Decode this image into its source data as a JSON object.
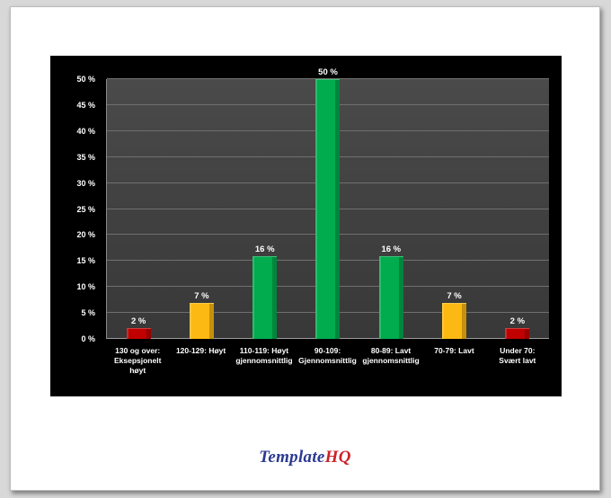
{
  "chart_data": {
    "type": "bar",
    "categories": [
      "130 og over: Eksepsjonelt høyt",
      "120-129: Høyt",
      "110-119: Høyt gjennomsnittlig",
      "90-109: Gjennomsnittlig",
      "80-89: Lavt gjennomsnittlig",
      "70-79: Lavt",
      "Under 70: Svært lavt"
    ],
    "values": [
      2,
      7,
      16,
      50,
      16,
      7,
      2
    ],
    "data_labels": [
      "2 %",
      "7 %",
      "16 %",
      "50 %",
      "16 %",
      "7 %",
      "2 %"
    ],
    "bar_colors": [
      "#c00000",
      "#fdb913",
      "#00ac4e",
      "#00ac4e",
      "#00ac4e",
      "#fdb913",
      "#c00000"
    ],
    "y_ticks": [
      "0 %",
      "5 %",
      "10 %",
      "15 %",
      "20 %",
      "25 %",
      "30 %",
      "35 %",
      "40 %",
      "45 %",
      "50 %"
    ],
    "ylim": [
      0,
      50
    ],
    "grid": true,
    "legend": "none",
    "title": "",
    "xlabel": "",
    "ylabel": "",
    "chart_background": "#000000",
    "plot_background": "#404040",
    "text_color": "#ffffff"
  },
  "footer": {
    "brand_first": "Template",
    "brand_second": "HQ",
    "brand_first_color": "#2b3990",
    "brand_second_color": "#cc2229"
  }
}
